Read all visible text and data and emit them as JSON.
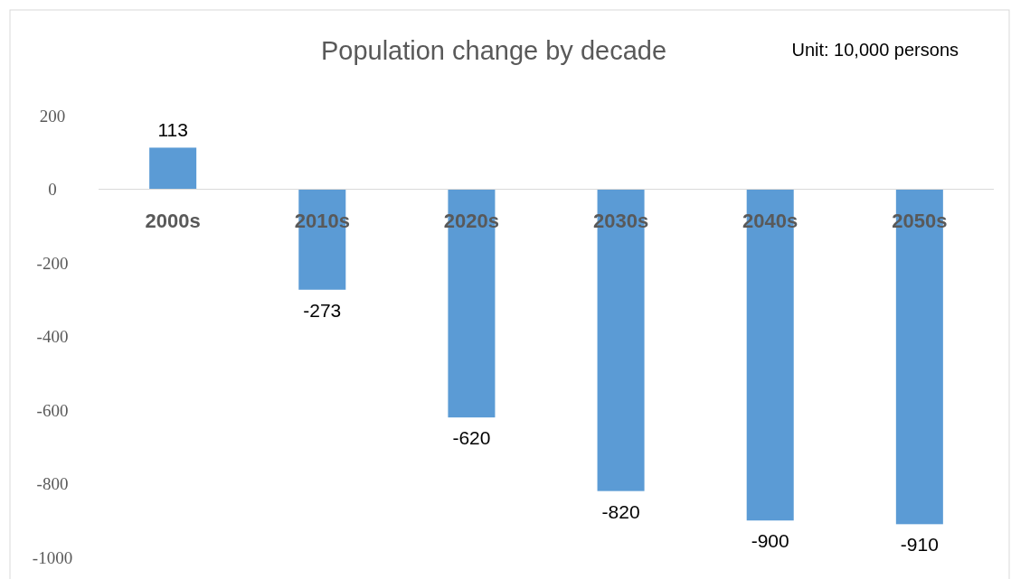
{
  "chart_data": {
    "type": "bar",
    "title": "Population change by decade",
    "annotations": [
      "Unit: 10,000 persons"
    ],
    "categories": [
      "2000s",
      "2010s",
      "2020s",
      "2030s",
      "2040s",
      "2050s"
    ],
    "values": [
      113,
      -273,
      -620,
      -820,
      -900,
      -910
    ],
    "color": "#5b9bd5",
    "ylim": [
      -1000,
      200
    ],
    "yticks": [
      -1000,
      -800,
      -600,
      -400,
      -200,
      0,
      200
    ],
    "data_labels": true,
    "grid": false
  }
}
